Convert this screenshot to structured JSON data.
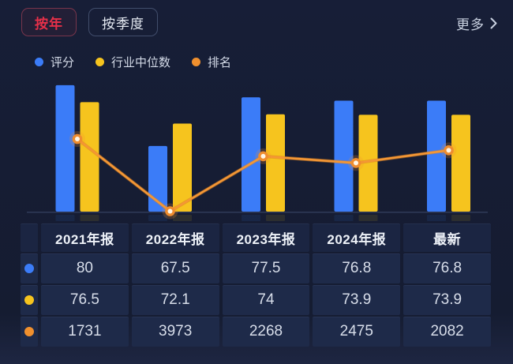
{
  "tabs": {
    "by_year": "按年",
    "by_quarter": "按季度"
  },
  "more": {
    "label": "更多"
  },
  "legend": {
    "items": [
      {
        "label": "评分",
        "color": "#3b7cf8"
      },
      {
        "label": "行业中位数",
        "color": "#f6c41e"
      },
      {
        "label": "排名",
        "color": "#f0902e"
      }
    ]
  },
  "chart_data": {
    "type": "bar+line",
    "categories": [
      "2021年报",
      "2022年报",
      "2023年报",
      "2024年报",
      "最新"
    ],
    "series": [
      {
        "name": "评分",
        "type": "bar",
        "color": "#3b7cf8",
        "values": [
          80,
          67.5,
          77.5,
          76.8,
          76.8
        ]
      },
      {
        "name": "行业中位数",
        "type": "bar",
        "color": "#f6c41e",
        "values": [
          76.5,
          72.1,
          74,
          73.9,
          73.9
        ]
      },
      {
        "name": "排名",
        "type": "line",
        "color": "#f0902e",
        "inverted_axis": true,
        "values": [
          1731,
          3973,
          2268,
          2475,
          2082
        ]
      }
    ],
    "title": "",
    "xlabel": "",
    "ylabel": "",
    "grid": false,
    "value_axis_visible": false,
    "legend_position": "top-left"
  },
  "table": {
    "headers": [
      "2021年报",
      "2022年报",
      "2023年报",
      "2024年报",
      "最新"
    ],
    "rows": [
      {
        "series": "评分",
        "dot_color": "#3b7cf8",
        "values": [
          "80",
          "67.5",
          "77.5",
          "76.8",
          "76.8"
        ]
      },
      {
        "series": "行业中位数",
        "dot_color": "#f6c41e",
        "values": [
          "76.5",
          "72.1",
          "74",
          "73.9",
          "73.9"
        ]
      },
      {
        "series": "排名",
        "dot_color": "#f0902e",
        "values": [
          "1731",
          "3973",
          "2268",
          "2475",
          "2082"
        ]
      }
    ]
  },
  "colors": {
    "background": "#161d34",
    "cell_background": "#1e2a49",
    "header_background": "#1b2542",
    "accent_red": "#e63049",
    "bar_blue": "#3b7cf8",
    "bar_yellow": "#f6c41e",
    "line_orange": "#f0902e",
    "dot_center": "#fff6e6"
  }
}
